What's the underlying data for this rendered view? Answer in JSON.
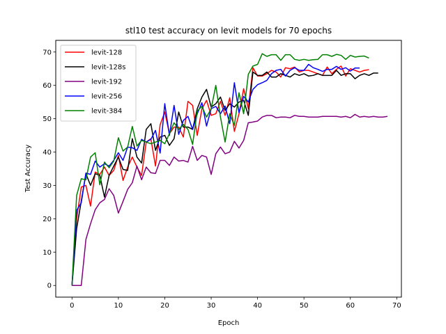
{
  "chart_data": {
    "type": "line",
    "title": "stl10 test accuracy on levit models for 70 epochs",
    "xlabel": "Epoch",
    "ylabel": "Test Accuracy",
    "xlim": [
      -3.5,
      71
    ],
    "ylim": [
      -3.5,
      73.5
    ],
    "xticks": [
      0,
      10,
      20,
      30,
      40,
      50,
      60,
      70
    ],
    "yticks": [
      0,
      10,
      20,
      30,
      40,
      50,
      60,
      70
    ],
    "grid": false,
    "legend_position": "top-left",
    "series": [
      {
        "name": "levit-128",
        "color": "#ff0000",
        "values": [
          0,
          20,
          29.5,
          30,
          23.8,
          34,
          33.3,
          35.5,
          33,
          34.5,
          39,
          31.5,
          35.5,
          38.5,
          35.5,
          33,
          43,
          44,
          35.8,
          48.2,
          52,
          45.5,
          47.5,
          47.5,
          44.5,
          55.2,
          54,
          45,
          53,
          55.5,
          51,
          51.5,
          55.2,
          51,
          56.3,
          46.2,
          51.5,
          59,
          53,
          65.3,
          62.8,
          62.8,
          63.5,
          64.5,
          64,
          62.5,
          65.3,
          65,
          65.5,
          64,
          64.5,
          64.5,
          64,
          63.5,
          63,
          65.5,
          63.5,
          64.8,
          65.8,
          62.8,
          65,
          64.5,
          64,
          64.5,
          64.7
        ]
      },
      {
        "name": "levit-128s",
        "color": "#000000",
        "values": [
          0,
          17,
          25.3,
          33.5,
          30,
          33.5,
          33,
          26.5,
          33,
          35.8,
          38.5,
          34.8,
          34.5,
          44,
          38.5,
          36.7,
          46.8,
          48.5,
          40.5,
          44.5,
          45,
          42,
          44,
          52,
          47.5,
          47.5,
          46.8,
          53,
          56.5,
          58.8,
          53.5,
          54.5,
          56.5,
          52.5,
          54.5,
          53.5,
          55,
          55.5,
          51,
          64,
          63,
          63,
          64,
          62.5,
          62.5,
          63.5,
          63,
          62.5,
          63.5,
          63,
          63.5,
          62.8,
          63,
          63.5,
          63,
          63,
          63,
          64.5,
          63,
          63.5,
          63.5,
          62,
          63,
          63.5,
          63,
          63.7,
          63.7
        ]
      },
      {
        "name": "levit-192",
        "color": "#800080",
        "values": [
          0,
          0,
          0,
          13.8,
          18.5,
          22.7,
          24.8,
          25.8,
          29,
          27,
          21.7,
          25.2,
          28.8,
          30.8,
          35.8,
          31.7,
          35.5,
          33.8,
          33.6,
          37.5,
          37.5,
          36,
          38.5,
          37.3,
          37.5,
          37,
          41.7,
          37.5,
          39,
          38.5,
          33.3,
          39.5,
          41.5,
          39.5,
          40,
          43.2,
          41.2,
          43.5,
          48.8,
          49,
          49.3,
          50.5,
          51,
          51,
          50.3,
          50.5,
          50.5,
          50.3,
          51,
          50.7,
          50.7,
          50.5,
          50.5,
          50.5,
          50.7,
          50.7,
          50.7,
          50.7,
          50.5,
          50.7,
          50.3,
          51.3,
          50.5,
          50.7,
          50.5,
          50.7,
          50.5,
          50.5,
          50.7
        ]
      },
      {
        "name": "levit-256",
        "color": "#0000ff",
        "values": [
          0,
          22.5,
          24.8,
          33.7,
          33.3,
          37.3,
          35.5,
          36.5,
          35.8,
          37.5,
          39.8,
          37.5,
          41.5,
          41.3,
          40.5,
          43.8,
          43,
          43.8,
          46.5,
          39.7,
          54.5,
          45,
          54,
          45.3,
          49.5,
          50.7,
          46.8,
          51.5,
          54.8,
          47.8,
          53,
          53.7,
          51.5,
          53.8,
          48.5,
          60.8,
          51.8,
          56.7,
          55,
          58.8,
          60.2,
          60.8,
          61.5,
          63.5,
          64.5,
          64.8,
          62.8,
          64.5,
          65.3,
          64.5,
          64.5,
          66.3,
          65.3,
          64.8,
          64.2,
          64.8,
          64.8,
          65.7,
          64.8,
          65.3,
          64.3,
          65.2,
          65.2
        ]
      },
      {
        "name": "levit-384",
        "color": "#008000",
        "values": [
          0,
          27,
          32,
          31.7,
          38.5,
          39.8,
          30.2,
          37,
          35.3,
          37.3,
          44.3,
          40.3,
          41.5,
          47.7,
          41.8,
          43.5,
          43,
          42.5,
          43,
          43.5,
          42.5,
          45.5,
          48.8,
          46.8,
          48.3,
          46.8,
          42.3,
          52.3,
          53.7,
          50.5,
          53,
          60,
          50.5,
          43,
          51.5,
          48,
          57.8,
          51.5,
          63.3,
          65.8,
          66.3,
          69.5,
          68.7,
          69.2,
          69.2,
          67.5,
          69.2,
          69.2,
          67.8,
          67.5,
          67.8,
          67.5,
          67.7,
          67.8,
          69.2,
          69.2,
          68.7,
          69.3,
          69,
          67.8,
          69,
          68.5,
          68.7,
          68.8,
          68.2
        ]
      }
    ]
  }
}
